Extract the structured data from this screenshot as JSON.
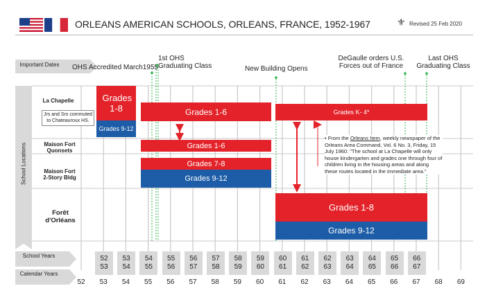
{
  "header": {
    "title": "ORLEANS AMERICAN SCHOOLS, ORLEANS, FRANCE, 1952-1967",
    "revised": "Revised 25 Feb 2020",
    "flag_icons": [
      "us-flag-icon",
      "france-flag-icon"
    ],
    "emblem_icon": "fleur-de-lis-icon"
  },
  "row_labels": {
    "important_dates": "Important Dates",
    "school_locations": "School Locations",
    "school_years": "School Years",
    "calendar_years": "Calendar Years",
    "la_chapelle": "La Chapelle",
    "maison_fort_quonsets": "Maison Fort Quonsets",
    "maison_fort_2story": "Maison Fort 2-Story Bldg",
    "foret_orleans": "Forêt d'Orléans"
  },
  "events": [
    {
      "label": "OHS Accredited March1955"
    },
    {
      "label": "1st OHS Graduating Class"
    },
    {
      "label": "New Building Opens"
    },
    {
      "label": "DeGaulle orders U.S. Forces out of France"
    },
    {
      "label": "Last OHS Graduating Class"
    }
  ],
  "bars": {
    "lc_grades_1_8": "Grades 1-8",
    "lc_grades_9_12": "Grades 9-12",
    "lc_grades_1_6": "Grades 1-6",
    "lc_grades_k4": "Grades K- 4*",
    "mfq_grades_1_6": "Grades 1-6",
    "mf2_grades_7_8": "Grades 7-8",
    "mf2_grades_9_12": "Grades 9-12",
    "fo_grades_1_8": "Grades 1-8",
    "fo_grades_9_12": "Grades 9-12"
  },
  "notes": {
    "jrs_srs": "Jrs and Srs commuted to Chateauroux HS.",
    "quote_prefix": "• From the ",
    "quote_source": "Orleans Item",
    "quote_rest": ", weekly newspaper of the Orleans Area Command, Vol. 6 No. 3, Friday, 15 July 1960: \"The school at La Chapelle will only house kindergarten and grades one through four of children living in the housing areas and along these routes located in the immediate area.\""
  },
  "school_years": [
    [
      "52",
      "53"
    ],
    [
      "53",
      "54"
    ],
    [
      "54",
      "55"
    ],
    [
      "55",
      "56"
    ],
    [
      "56",
      "57"
    ],
    [
      "57",
      "58"
    ],
    [
      "58",
      "59"
    ],
    [
      "59",
      "60"
    ],
    [
      "60",
      "61"
    ],
    [
      "61",
      "62"
    ],
    [
      "62",
      "63"
    ],
    [
      "63",
      "64"
    ],
    [
      "64",
      "65"
    ],
    [
      "65",
      "66"
    ],
    [
      "66",
      "67"
    ]
  ],
  "calendar_years": [
    "52",
    "53",
    "54",
    "55",
    "56",
    "57",
    "58",
    "59",
    "60",
    "61",
    "62",
    "63",
    "64",
    "65",
    "66",
    "67",
    "68",
    "69"
  ],
  "colors": {
    "red": "#e32229",
    "blue": "#1d5ca7",
    "green": "#2bb24c",
    "gray_band": "#d9d9d9"
  }
}
